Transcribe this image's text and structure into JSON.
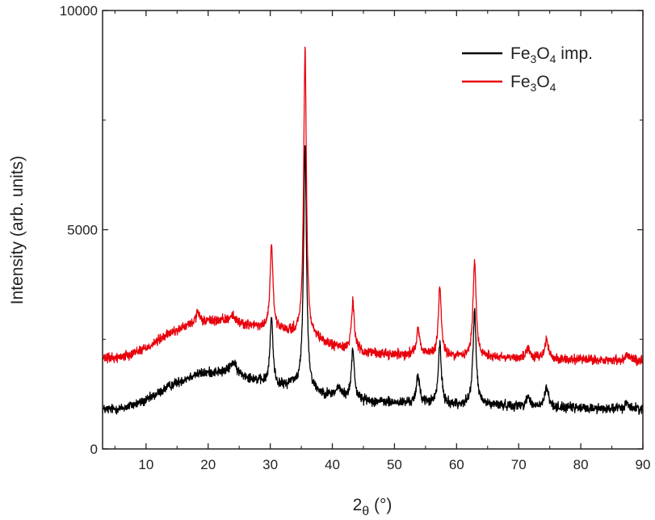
{
  "chart_data": {
    "type": "line",
    "title": "",
    "xlabel": {
      "main": "2",
      "sub": "θ",
      "unit": " (°)"
    },
    "ylabel": "Intensity (arb. units)",
    "xlim": [
      3,
      90
    ],
    "ylim": [
      0,
      10000
    ],
    "xticks": [
      "10",
      "20",
      "30",
      "40",
      "50",
      "60",
      "70",
      "80",
      "90"
    ],
    "yticks": [
      "0",
      "5000",
      "10000"
    ],
    "grid": false,
    "legend": {
      "position": "top-right",
      "entries": [
        {
          "base": "Fe",
          "s1": "3",
          "mid": "O",
          "s2": "4",
          "suffix": " imp."
        },
        {
          "base": "Fe",
          "s1": "3",
          "mid": "O",
          "s2": "4",
          "suffix": ""
        }
      ]
    },
    "series": [
      {
        "name": "Fe3O4 imp.",
        "color": "#000000",
        "noise": 90,
        "background": [
          [
            3,
            900
          ],
          [
            6,
            920
          ],
          [
            10,
            1100
          ],
          [
            14,
            1450
          ],
          [
            18,
            1700
          ],
          [
            21,
            1750
          ],
          [
            24,
            1720
          ],
          [
            27,
            1600
          ],
          [
            30,
            1450
          ],
          [
            33,
            1350
          ],
          [
            36,
            1300
          ],
          [
            40,
            1200
          ],
          [
            45,
            1100
          ],
          [
            50,
            1050
          ],
          [
            55,
            1050
          ],
          [
            60,
            1000
          ],
          [
            65,
            1000
          ],
          [
            70,
            980
          ],
          [
            75,
            950
          ],
          [
            80,
            930
          ],
          [
            85,
            920
          ],
          [
            90,
            920
          ]
        ],
        "peaks": [
          [
            24.0,
            250,
            0.6
          ],
          [
            30.2,
            1550,
            0.28
          ],
          [
            33.5,
            150,
            0.8
          ],
          [
            35.6,
            5600,
            0.28
          ],
          [
            41.0,
            200,
            0.5
          ],
          [
            43.3,
            1150,
            0.28
          ],
          [
            53.8,
            620,
            0.3
          ],
          [
            57.3,
            1380,
            0.28
          ],
          [
            62.9,
            2150,
            0.3
          ],
          [
            71.5,
            250,
            0.3
          ],
          [
            74.5,
            450,
            0.35
          ],
          [
            87.5,
            150,
            0.3
          ]
        ]
      },
      {
        "name": "Fe3O4",
        "color": "#e8000b",
        "noise": 90,
        "background": [
          [
            3,
            2050
          ],
          [
            6,
            2100
          ],
          [
            10,
            2300
          ],
          [
            14,
            2650
          ],
          [
            18,
            2880
          ],
          [
            21,
            2920
          ],
          [
            24,
            2900
          ],
          [
            27,
            2800
          ],
          [
            30,
            2720
          ],
          [
            33,
            2650
          ],
          [
            36,
            2550
          ],
          [
            40,
            2350
          ],
          [
            45,
            2200
          ],
          [
            50,
            2150
          ],
          [
            55,
            2150
          ],
          [
            60,
            2100
          ],
          [
            65,
            2100
          ],
          [
            70,
            2080
          ],
          [
            75,
            2050
          ],
          [
            80,
            2030
          ],
          [
            85,
            2020
          ],
          [
            90,
            2020
          ]
        ],
        "peaks": [
          [
            18.3,
            200,
            0.4
          ],
          [
            23.8,
            150,
            0.5
          ],
          [
            30.2,
            1920,
            0.28
          ],
          [
            35.6,
            6550,
            0.26
          ],
          [
            43.3,
            1100,
            0.28
          ],
          [
            53.8,
            620,
            0.3
          ],
          [
            57.3,
            1550,
            0.28
          ],
          [
            62.9,
            2150,
            0.3
          ],
          [
            71.5,
            230,
            0.3
          ],
          [
            74.5,
            450,
            0.35
          ],
          [
            87.5,
            150,
            0.3
          ]
        ]
      }
    ]
  }
}
